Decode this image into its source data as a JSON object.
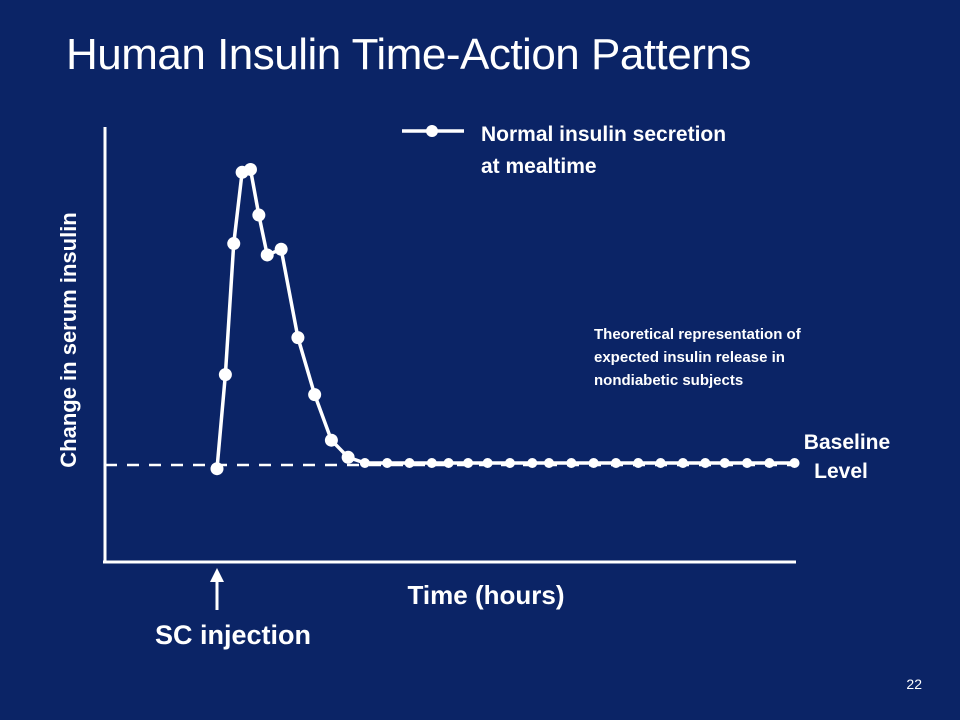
{
  "slide": {
    "title": "Human Insulin Time-Action Patterns",
    "number": "22",
    "background_color": "#0b2466",
    "foreground_color": "#ffffff"
  },
  "chart_data": {
    "type": "line",
    "title": "Human Insulin Time-Action Patterns",
    "xlabel": "Time (hours)",
    "ylabel": "Change in serum insulin",
    "ylim": [
      0,
      100
    ],
    "grid": false,
    "legend_position": "top-right",
    "series": [
      {
        "name": "Normal insulin secretion at mealtime",
        "marker": "circle",
        "values": [
          {
            "x": 0.0,
            "y": -2
          },
          {
            "x": 0.3,
            "y": 31
          },
          {
            "x": 0.6,
            "y": 77
          },
          {
            "x": 0.9,
            "y": 102
          },
          {
            "x": 1.2,
            "y": 103
          },
          {
            "x": 1.5,
            "y": 87
          },
          {
            "x": 1.8,
            "y": 73
          },
          {
            "x": 2.3,
            "y": 75
          },
          {
            "x": 2.9,
            "y": 44
          },
          {
            "x": 3.5,
            "y": 24
          },
          {
            "x": 4.1,
            "y": 8
          },
          {
            "x": 4.7,
            "y": 2
          },
          {
            "x": 5.3,
            "y": 0
          },
          {
            "x": 6.1,
            "y": 0
          },
          {
            "x": 6.9,
            "y": 0
          },
          {
            "x": 7.7,
            "y": 0
          },
          {
            "x": 8.3,
            "y": 0
          },
          {
            "x": 9.0,
            "y": 0
          },
          {
            "x": 9.7,
            "y": 0
          },
          {
            "x": 10.5,
            "y": 0
          },
          {
            "x": 11.3,
            "y": 0
          },
          {
            "x": 11.9,
            "y": 0
          },
          {
            "x": 12.7,
            "y": 0
          },
          {
            "x": 13.5,
            "y": 0
          },
          {
            "x": 14.3,
            "y": 0
          },
          {
            "x": 15.1,
            "y": 0
          },
          {
            "x": 15.9,
            "y": 0
          },
          {
            "x": 16.7,
            "y": 0
          },
          {
            "x": 17.5,
            "y": 0
          },
          {
            "x": 18.2,
            "y": 0
          },
          {
            "x": 19.0,
            "y": 0
          },
          {
            "x": 19.8,
            "y": 0
          },
          {
            "x": 20.7,
            "y": 0
          }
        ]
      }
    ],
    "baseline": {
      "y": 0,
      "label_line1": "Baseline",
      "label_line2": "Level"
    },
    "annotations": {
      "note_lines": [
        "Theoretical representation of",
        "expected insulin release in",
        "nondiabetic subjects"
      ],
      "legend_lines": [
        "Normal insulin secretion",
        "at mealtime"
      ],
      "injection_label": "SC injection"
    }
  }
}
